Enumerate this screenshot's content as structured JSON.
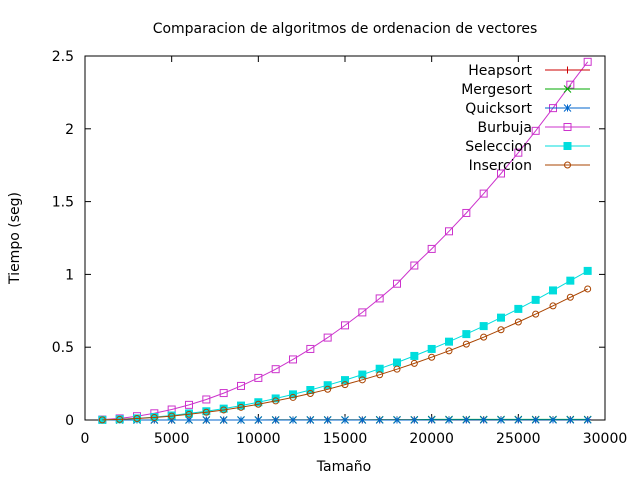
{
  "chart_data": {
    "type": "line",
    "title": "Comparacion de algoritmos de ordenacion de vectores",
    "xlabel": "Tamaño",
    "ylabel": "Tiempo (seg)",
    "xlim": [
      0,
      30000
    ],
    "ylim": [
      0,
      2.5
    ],
    "xticks": [
      0,
      5000,
      10000,
      15000,
      20000,
      25000,
      30000
    ],
    "yticks": [
      0,
      0.5,
      1,
      1.5,
      2,
      2.5
    ],
    "grid": false,
    "legend_position": "top-right",
    "x": [
      1000,
      2000,
      3000,
      4000,
      5000,
      6000,
      7000,
      8000,
      9000,
      10000,
      11000,
      12000,
      13000,
      14000,
      15000,
      16000,
      17000,
      18000,
      19000,
      20000,
      21000,
      22000,
      23000,
      24000,
      25000,
      26000,
      27000,
      28000,
      29000
    ],
    "series": [
      {
        "name": "Heapsort",
        "color": "#cc0000",
        "marker": "plus",
        "values": [
          0,
          0,
          0,
          0,
          0,
          0,
          0,
          0,
          0,
          0,
          0.001,
          0.001,
          0.001,
          0.001,
          0.001,
          0.001,
          0.002,
          0.002,
          0.002,
          0.002,
          0.002,
          0.002,
          0.002,
          0.003,
          0.003,
          0.003,
          0.003,
          0.003,
          0.003
        ]
      },
      {
        "name": "Mergesort",
        "color": "#00aa00",
        "marker": "cross",
        "values": [
          0,
          0,
          0,
          0,
          0,
          0,
          0,
          0,
          0,
          0,
          0.001,
          0.001,
          0.001,
          0.001,
          0.001,
          0.001,
          0.002,
          0.002,
          0.002,
          0.004,
          0.004,
          0.004,
          0.004,
          0.004,
          0.004,
          0.004,
          0.004,
          0.004,
          0.004
        ]
      },
      {
        "name": "Quicksort",
        "color": "#0066cc",
        "marker": "star",
        "values": [
          0,
          0,
          0,
          0,
          0,
          0,
          0,
          0,
          0,
          0,
          0,
          0,
          0,
          0,
          0,
          0,
          0,
          0,
          0,
          0.001,
          0.001,
          0.001,
          0.001,
          0.001,
          0.001,
          0.001,
          0.001,
          0.001,
          0.001
        ]
      },
      {
        "name": "Burbuja",
        "color": "#cc33cc",
        "marker": "open-square",
        "values": [
          0.003,
          0.011,
          0.026,
          0.046,
          0.072,
          0.104,
          0.141,
          0.185,
          0.234,
          0.289,
          0.349,
          0.416,
          0.488,
          0.566,
          0.65,
          0.739,
          0.835,
          0.936,
          1.061,
          1.175,
          1.296,
          1.422,
          1.555,
          1.693,
          1.836,
          1.986,
          2.142,
          2.303,
          2.46
        ]
      },
      {
        "name": "Seleccion",
        "color": "#00dddd",
        "marker": "filled-square",
        "values": [
          0.001,
          0.005,
          0.011,
          0.02,
          0.031,
          0.045,
          0.06,
          0.078,
          0.099,
          0.122,
          0.148,
          0.176,
          0.206,
          0.239,
          0.274,
          0.312,
          0.352,
          0.395,
          0.44,
          0.488,
          0.538,
          0.59,
          0.645,
          0.703,
          0.763,
          0.825,
          0.89,
          0.957,
          1.024
        ]
      },
      {
        "name": "Insercion",
        "color": "#aa4400",
        "marker": "open-circle",
        "values": [
          0.001,
          0.004,
          0.01,
          0.017,
          0.027,
          0.039,
          0.053,
          0.069,
          0.087,
          0.108,
          0.131,
          0.155,
          0.182,
          0.211,
          0.243,
          0.276,
          0.311,
          0.349,
          0.389,
          0.431,
          0.475,
          0.521,
          0.569,
          0.62,
          0.673,
          0.727,
          0.784,
          0.843,
          0.9
        ]
      }
    ]
  }
}
